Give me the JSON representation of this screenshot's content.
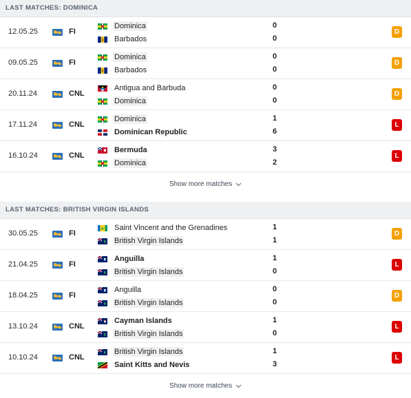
{
  "sections": [
    {
      "title": "LAST MATCHES: DOMINICA",
      "show_more": "Show more matches",
      "matches": [
        {
          "date": "12.05.25",
          "competition": "FI",
          "home": {
            "name": "Dominica",
            "flag": "dominica",
            "hl": true,
            "bold": false
          },
          "away": {
            "name": "Barbados",
            "flag": "barbados",
            "hl": false,
            "bold": false
          },
          "home_score": "0",
          "away_score": "0",
          "result": "D"
        },
        {
          "date": "09.05.25",
          "competition": "FI",
          "home": {
            "name": "Dominica",
            "flag": "dominica",
            "hl": true,
            "bold": false
          },
          "away": {
            "name": "Barbados",
            "flag": "barbados",
            "hl": false,
            "bold": false
          },
          "home_score": "0",
          "away_score": "0",
          "result": "D"
        },
        {
          "date": "20.11.24",
          "competition": "CNL",
          "home": {
            "name": "Antigua and Barbuda",
            "flag": "antigua",
            "hl": false,
            "bold": false
          },
          "away": {
            "name": "Dominica",
            "flag": "dominica",
            "hl": true,
            "bold": false
          },
          "home_score": "0",
          "away_score": "0",
          "result": "D"
        },
        {
          "date": "17.11.24",
          "competition": "CNL",
          "home": {
            "name": "Dominica",
            "flag": "dominica",
            "hl": true,
            "bold": false
          },
          "away": {
            "name": "Dominican Republic",
            "flag": "dominican-republic",
            "hl": false,
            "bold": true
          },
          "home_score": "1",
          "away_score": "6",
          "result": "L"
        },
        {
          "date": "16.10.24",
          "competition": "CNL",
          "home": {
            "name": "Bermuda",
            "flag": "bermuda",
            "hl": false,
            "bold": true
          },
          "away": {
            "name": "Dominica",
            "flag": "dominica",
            "hl": true,
            "bold": false
          },
          "home_score": "3",
          "away_score": "2",
          "result": "L"
        }
      ]
    },
    {
      "title": "LAST MATCHES: BRITISH VIRGIN ISLANDS",
      "show_more": "Show more matches",
      "matches": [
        {
          "date": "30.05.25",
          "competition": "FI",
          "home": {
            "name": "Saint Vincent and the Grenadines",
            "flag": "st-vincent",
            "hl": false,
            "bold": false
          },
          "away": {
            "name": "British Virgin Islands",
            "flag": "bvi",
            "hl": true,
            "bold": false
          },
          "home_score": "1",
          "away_score": "1",
          "result": "D"
        },
        {
          "date": "21.04.25",
          "competition": "FI",
          "home": {
            "name": "Anguilla",
            "flag": "anguilla",
            "hl": false,
            "bold": true
          },
          "away": {
            "name": "British Virgin Islands",
            "flag": "bvi",
            "hl": true,
            "bold": false
          },
          "home_score": "1",
          "away_score": "0",
          "result": "L"
        },
        {
          "date": "18.04.25",
          "competition": "FI",
          "home": {
            "name": "Anguilla",
            "flag": "anguilla",
            "hl": false,
            "bold": false
          },
          "away": {
            "name": "British Virgin Islands",
            "flag": "bvi",
            "hl": true,
            "bold": false
          },
          "home_score": "0",
          "away_score": "0",
          "result": "D"
        },
        {
          "date": "13.10.24",
          "competition": "CNL",
          "home": {
            "name": "Cayman Islands",
            "flag": "cayman",
            "hl": false,
            "bold": true
          },
          "away": {
            "name": "British Virgin Islands",
            "flag": "bvi",
            "hl": true,
            "bold": false
          },
          "home_score": "1",
          "away_score": "0",
          "result": "L"
        },
        {
          "date": "10.10.24",
          "competition": "CNL",
          "home": {
            "name": "British Virgin Islands",
            "flag": "bvi",
            "hl": true,
            "bold": false
          },
          "away": {
            "name": "Saint Kitts and Nevis",
            "flag": "st-kitts",
            "hl": false,
            "bold": true
          },
          "home_score": "1",
          "away_score": "3",
          "result": "L"
        }
      ]
    }
  ]
}
